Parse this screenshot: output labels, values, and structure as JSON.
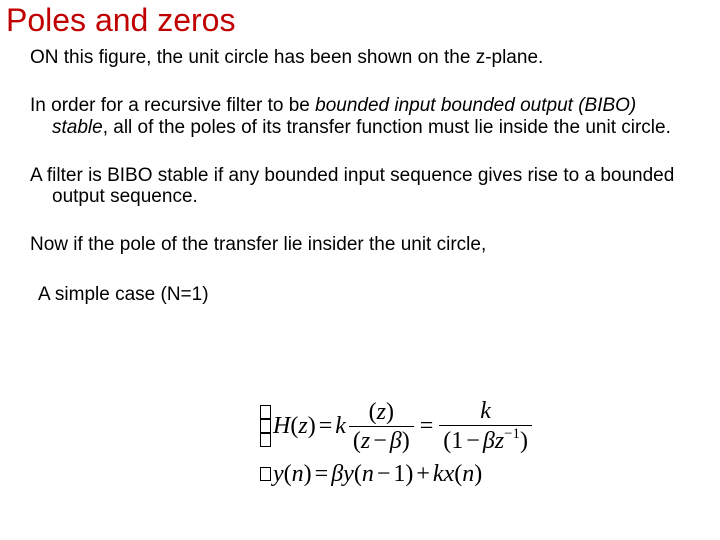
{
  "title": "Poles and zeros",
  "title_color": "#c00000",
  "title_fontsize": 32,
  "body_fontsize": 19,
  "body_color": "#000000",
  "background_color": "#ffffff",
  "paragraphs": {
    "p1": "ON this figure, the unit circle has been shown on the z-plane.",
    "p2_a": "In order for a recursive filter to be ",
    "p2_b_italic": "bounded input bounded output (BIBO) stable",
    "p2_c": ", all of the poles of its transfer function must lie inside the unit circle.",
    "p3": "A filter is BIBO stable if any bounded input sequence gives rise to a bounded output sequence.",
    "p4": "Now if the pole of the transfer lie insider the unit circle,",
    "simple_case": "A simple case (N=1)"
  },
  "equations": {
    "eq1": {
      "lhs": "H(z)",
      "k": "k",
      "frac1_num": "(z)",
      "frac1_den": "(z− β)",
      "frac2_num": "k",
      "frac2_den_a": "(1−",
      "frac2_den_beta": "β",
      "frac2_den_zexp": "z",
      "frac2_den_exp": "−1",
      "frac2_den_end": ")"
    },
    "eq2": {
      "full": "y(n) = βy(n−1)+kx(n)"
    },
    "math_fontfamily": "Times New Roman",
    "math_fontsize": 24,
    "math_color": "#000000"
  }
}
